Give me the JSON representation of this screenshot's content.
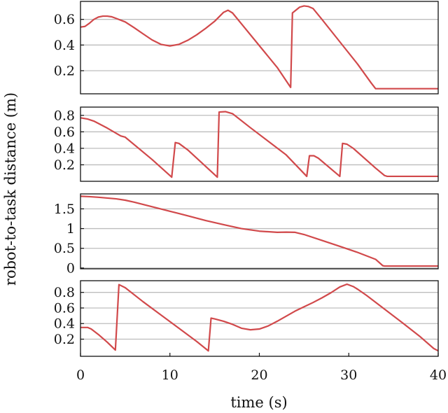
{
  "colors": {
    "series": "#d1494b",
    "grid": "#bdbdbd",
    "axis": "#111111"
  },
  "chart_data": {
    "type": "line",
    "xlabel": "time (s)",
    "ylabel": "robot-to-task distance (m)",
    "xlim": [
      0,
      40
    ],
    "xticks": [
      0,
      10,
      20,
      30,
      40
    ],
    "xtick_labels": [
      "0",
      "10",
      "20",
      "30",
      "40"
    ],
    "grid": "horizontal",
    "panels": [
      {
        "ylim": [
          0.02,
          0.74
        ],
        "yticks": [
          0.2,
          0.4,
          0.6
        ],
        "ytick_labels": [
          "0.2",
          "0.4",
          "0.6"
        ],
        "points": [
          [
            0,
            0.54
          ],
          [
            0.5,
            0.545
          ],
          [
            1,
            0.57
          ],
          [
            1.5,
            0.6
          ],
          [
            2,
            0.618
          ],
          [
            2.5,
            0.625
          ],
          [
            3,
            0.625
          ],
          [
            3.5,
            0.62
          ],
          [
            4,
            0.607
          ],
          [
            5,
            0.58
          ],
          [
            6,
            0.535
          ],
          [
            7,
            0.487
          ],
          [
            8,
            0.44
          ],
          [
            9,
            0.405
          ],
          [
            10,
            0.393
          ],
          [
            11,
            0.405
          ],
          [
            12,
            0.437
          ],
          [
            13,
            0.48
          ],
          [
            14,
            0.53
          ],
          [
            15,
            0.585
          ],
          [
            16,
            0.655
          ],
          [
            16.5,
            0.671
          ],
          [
            17,
            0.65
          ],
          [
            18,
            0.565
          ],
          [
            20,
            0.395
          ],
          [
            22,
            0.225
          ],
          [
            23.5,
            0.07
          ],
          [
            23.7,
            0.65
          ],
          [
            24.5,
            0.695
          ],
          [
            25,
            0.705
          ],
          [
            25.5,
            0.7
          ],
          [
            26,
            0.685
          ],
          [
            27,
            0.6
          ],
          [
            29,
            0.425
          ],
          [
            31,
            0.25
          ],
          [
            32.5,
            0.105
          ],
          [
            33,
            0.06
          ],
          [
            40,
            0.06
          ]
        ]
      },
      {
        "ylim": [
          0.0,
          0.9
        ],
        "yticks": [
          0.2,
          0.4,
          0.6,
          0.8
        ],
        "ytick_labels": [
          "0.2",
          "0.4",
          "0.6",
          "0.8"
        ],
        "points": [
          [
            0,
            0.77
          ],
          [
            0.8,
            0.755
          ],
          [
            1.5,
            0.73
          ],
          [
            3,
            0.645
          ],
          [
            4.5,
            0.55
          ],
          [
            5,
            0.535
          ],
          [
            8,
            0.265
          ],
          [
            10.2,
            0.05
          ],
          [
            10.6,
            0.47
          ],
          [
            11,
            0.46
          ],
          [
            12,
            0.38
          ],
          [
            15.3,
            0.05
          ],
          [
            15.5,
            0.84
          ],
          [
            16.2,
            0.845
          ],
          [
            17,
            0.82
          ],
          [
            19,
            0.65
          ],
          [
            23,
            0.32
          ],
          [
            25.3,
            0.06
          ],
          [
            25.6,
            0.31
          ],
          [
            26.1,
            0.31
          ],
          [
            26.6,
            0.28
          ],
          [
            29,
            0.06
          ],
          [
            29.3,
            0.46
          ],
          [
            29.8,
            0.45
          ],
          [
            30.5,
            0.4
          ],
          [
            33,
            0.16
          ],
          [
            34,
            0.07
          ],
          [
            34.3,
            0.06
          ],
          [
            40,
            0.06
          ]
        ]
      },
      {
        "ylim": [
          -0.02,
          1.88
        ],
        "yticks": [
          0,
          0.5,
          1,
          1.5
        ],
        "ytick_labels": [
          "0",
          "0.5",
          "1",
          "1.5"
        ],
        "points": [
          [
            0,
            1.82
          ],
          [
            1,
            1.81
          ],
          [
            2,
            1.795
          ],
          [
            3,
            1.775
          ],
          [
            4,
            1.755
          ],
          [
            5,
            1.72
          ],
          [
            6,
            1.67
          ],
          [
            8,
            1.555
          ],
          [
            10,
            1.44
          ],
          [
            12,
            1.325
          ],
          [
            14,
            1.205
          ],
          [
            16,
            1.1
          ],
          [
            18,
            1.0
          ],
          [
            20,
            0.935
          ],
          [
            22,
            0.905
          ],
          [
            23,
            0.91
          ],
          [
            24,
            0.905
          ],
          [
            25,
            0.85
          ],
          [
            27,
            0.7
          ],
          [
            29,
            0.55
          ],
          [
            31,
            0.395
          ],
          [
            33,
            0.22
          ],
          [
            33.8,
            0.06
          ],
          [
            34,
            0.05
          ],
          [
            40,
            0.05
          ]
        ]
      },
      {
        "ylim": [
          -0.02,
          0.95
        ],
        "yticks": [
          0.2,
          0.4,
          0.6,
          0.8
        ],
        "ytick_labels": [
          "0.2",
          "0.4",
          "0.6",
          "0.8"
        ],
        "points": [
          [
            0,
            0.35
          ],
          [
            0.8,
            0.35
          ],
          [
            1.2,
            0.33
          ],
          [
            2,
            0.26
          ],
          [
            3,
            0.16
          ],
          [
            3.9,
            0.06
          ],
          [
            4.3,
            0.9
          ],
          [
            5,
            0.86
          ],
          [
            7,
            0.68
          ],
          [
            9,
            0.51
          ],
          [
            11,
            0.34
          ],
          [
            13,
            0.17
          ],
          [
            14.3,
            0.05
          ],
          [
            14.6,
            0.47
          ],
          [
            15,
            0.46
          ],
          [
            16,
            0.43
          ],
          [
            17,
            0.39
          ],
          [
            18,
            0.34
          ],
          [
            19,
            0.32
          ],
          [
            20,
            0.33
          ],
          [
            21,
            0.37
          ],
          [
            22,
            0.43
          ],
          [
            23,
            0.495
          ],
          [
            24,
            0.56
          ],
          [
            25,
            0.615
          ],
          [
            26,
            0.67
          ],
          [
            27,
            0.73
          ],
          [
            28,
            0.795
          ],
          [
            29,
            0.87
          ],
          [
            29.8,
            0.905
          ],
          [
            30.5,
            0.875
          ],
          [
            31,
            0.84
          ],
          [
            32,
            0.76
          ],
          [
            34,
            0.585
          ],
          [
            36,
            0.41
          ],
          [
            38,
            0.23
          ],
          [
            39.5,
            0.08
          ],
          [
            40,
            0.05
          ]
        ]
      }
    ]
  }
}
